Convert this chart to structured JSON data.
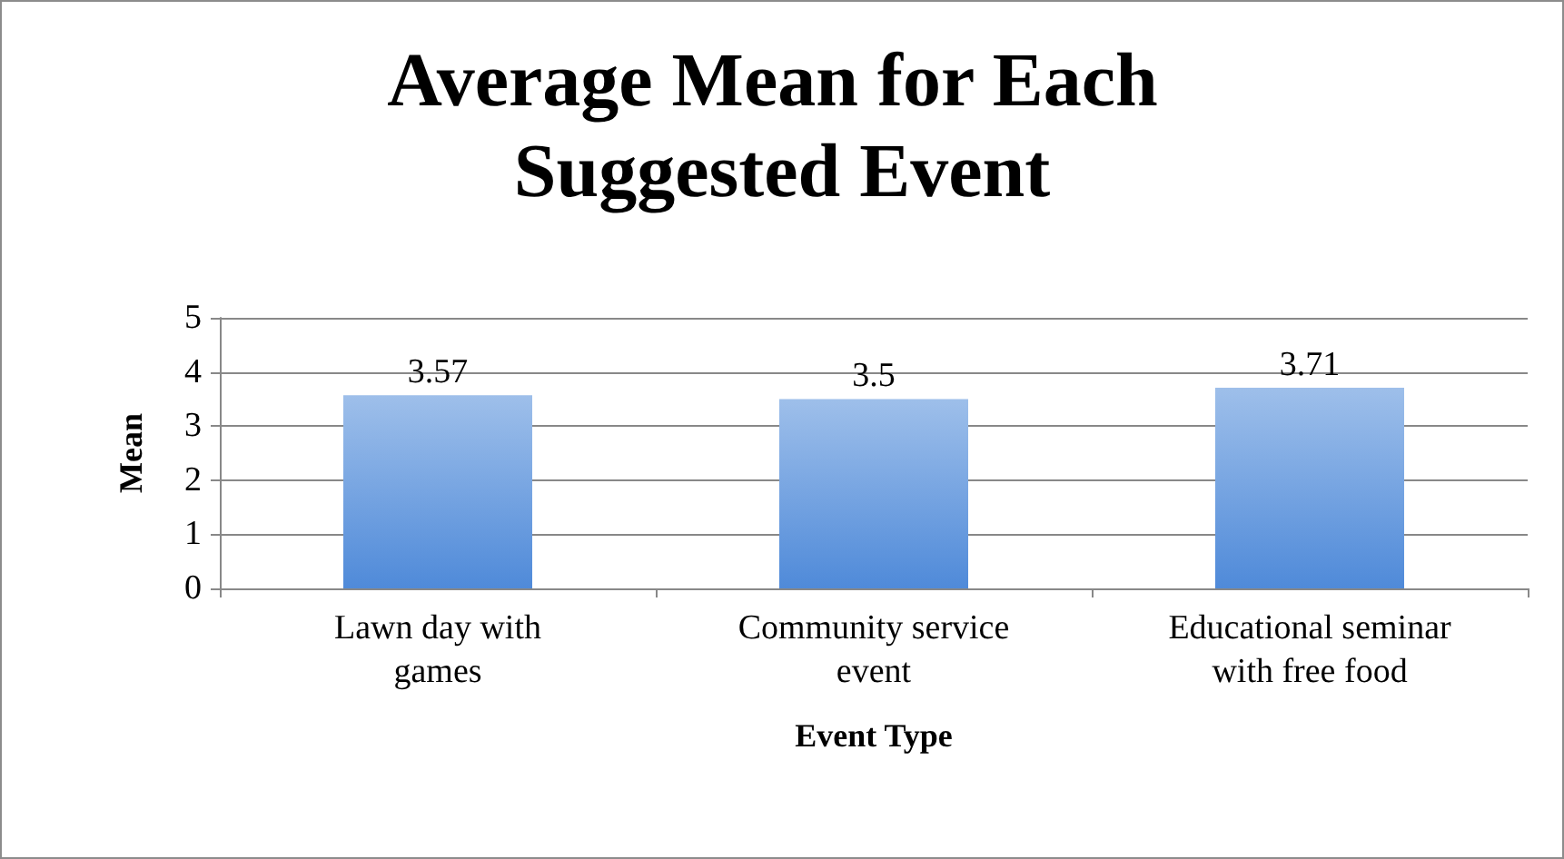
{
  "chart_data": {
    "type": "bar",
    "title": "Average Mean for Each Suggested Event",
    "xlabel": "Event Type",
    "ylabel": "Mean",
    "categories": [
      "Lawn day with\ngames",
      "Community service\nevent",
      "Educational seminar\nwith free food"
    ],
    "values": [
      3.57,
      3.5,
      3.71
    ],
    "color": "#4f8ad9",
    "ylim": [
      0,
      5
    ],
    "yticks": [
      0,
      1,
      2,
      3,
      4,
      5
    ],
    "grid": "y",
    "data_labels": true
  }
}
